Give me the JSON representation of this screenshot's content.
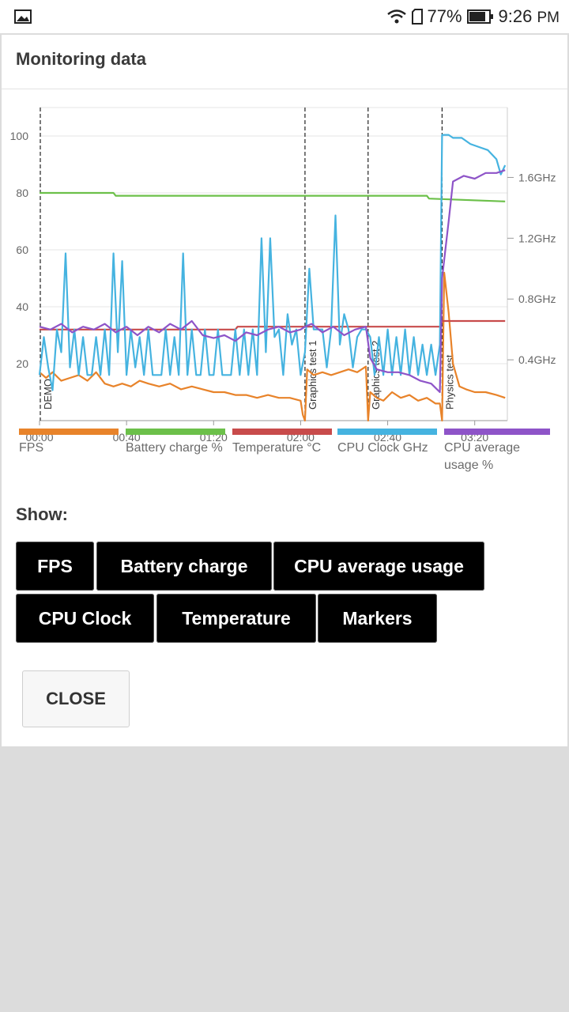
{
  "status_bar": {
    "battery": "77%",
    "time": "9:26",
    "ampm": "PM",
    "icons": [
      "image-icon",
      "wifi-icon",
      "sim-icon",
      "battery-icon"
    ]
  },
  "dialog": {
    "title": "Monitoring data",
    "show_label": "Show:",
    "buttons": {
      "fps": "FPS",
      "battery": "Battery charge",
      "cpu_usage": "CPU average usage",
      "cpu_clock": "CPU Clock",
      "temperature": "Temperature",
      "markers": "Markers"
    },
    "close": "CLOSE"
  },
  "legend": [
    {
      "label": "FPS",
      "color": "#e8832a"
    },
    {
      "label": "Battery charge %",
      "color": "#6cc04a"
    },
    {
      "label": "Temperature °C",
      "color": "#c84b4b"
    },
    {
      "label": "CPU Clock GHz",
      "color": "#45b3e0"
    },
    {
      "label": "CPU average usage %",
      "color": "#8e54c8"
    }
  ],
  "chart_data": {
    "type": "line",
    "x_ticks": [
      "00:00",
      "00:40",
      "01:20",
      "02:00",
      "02:40",
      "03:20"
    ],
    "x_range_seconds": [
      0,
      215
    ],
    "y_left_ticks": [
      20,
      40,
      60,
      80,
      100
    ],
    "y_left_range": [
      0,
      110
    ],
    "y_right_ticks": [
      "0.4GHz",
      "0.8GHz",
      "1.2GHz",
      "1.6GHz"
    ],
    "y_right_range": [
      0,
      2.06
    ],
    "markers": [
      {
        "t": 0,
        "label": "DEMO"
      },
      {
        "t": 122,
        "label": "Graphics test 1"
      },
      {
        "t": 151,
        "label": "Graphics test 2"
      },
      {
        "t": 185,
        "label": "Physics test"
      }
    ],
    "series": [
      {
        "name": "FPS",
        "color": "#e8832a",
        "axis": "left",
        "points": [
          [
            0,
            17
          ],
          [
            3,
            15
          ],
          [
            6,
            17
          ],
          [
            10,
            14
          ],
          [
            14,
            15
          ],
          [
            18,
            16
          ],
          [
            22,
            14
          ],
          [
            26,
            17
          ],
          [
            30,
            13
          ],
          [
            34,
            12
          ],
          [
            38,
            13
          ],
          [
            42,
            12
          ],
          [
            46,
            14
          ],
          [
            50,
            13
          ],
          [
            55,
            12
          ],
          [
            60,
            13
          ],
          [
            65,
            11
          ],
          [
            70,
            12
          ],
          [
            75,
            11
          ],
          [
            80,
            10
          ],
          [
            85,
            10
          ],
          [
            90,
            9
          ],
          [
            95,
            9
          ],
          [
            100,
            8
          ],
          [
            105,
            9
          ],
          [
            110,
            8
          ],
          [
            115,
            8
          ],
          [
            120,
            7
          ],
          [
            121,
            2
          ],
          [
            122,
            0
          ],
          [
            123,
            18
          ],
          [
            126,
            16
          ],
          [
            130,
            17
          ],
          [
            134,
            16
          ],
          [
            138,
            17
          ],
          [
            142,
            18
          ],
          [
            146,
            17
          ],
          [
            150,
            19
          ],
          [
            151,
            0
          ],
          [
            152,
            10
          ],
          [
            155,
            8
          ],
          [
            158,
            7
          ],
          [
            162,
            10
          ],
          [
            166,
            8
          ],
          [
            170,
            9
          ],
          [
            174,
            7
          ],
          [
            178,
            8
          ],
          [
            182,
            6
          ],
          [
            184,
            6
          ],
          [
            185,
            0
          ],
          [
            186,
            52
          ],
          [
            188,
            38
          ],
          [
            190,
            20
          ],
          [
            193,
            12
          ],
          [
            196,
            11
          ],
          [
            200,
            10
          ],
          [
            205,
            10
          ],
          [
            210,
            9
          ],
          [
            214,
            8
          ]
        ]
      },
      {
        "name": "Battery charge %",
        "color": "#6cc04a",
        "axis": "left",
        "points": [
          [
            0,
            80
          ],
          [
            34,
            80
          ],
          [
            35,
            79
          ],
          [
            178,
            79
          ],
          [
            179,
            78
          ],
          [
            214,
            77
          ]
        ]
      },
      {
        "name": "Temperature °C",
        "color": "#c84b4b",
        "axis": "left",
        "points": [
          [
            0,
            32
          ],
          [
            90,
            32
          ],
          [
            91,
            33
          ],
          [
            184,
            33
          ],
          [
            185,
            35
          ],
          [
            214,
            35
          ]
        ]
      },
      {
        "name": "CPU Clock GHz",
        "color": "#45b3e0",
        "axis": "right",
        "points": [
          [
            0,
            0.3
          ],
          [
            2,
            0.55
          ],
          [
            4,
            0.35
          ],
          [
            6,
            0.2
          ],
          [
            8,
            0.6
          ],
          [
            10,
            0.45
          ],
          [
            12,
            1.1
          ],
          [
            14,
            0.35
          ],
          [
            16,
            0.6
          ],
          [
            18,
            0.3
          ],
          [
            20,
            0.55
          ],
          [
            22,
            0.3
          ],
          [
            24,
            0.3
          ],
          [
            26,
            0.55
          ],
          [
            28,
            0.3
          ],
          [
            30,
            0.6
          ],
          [
            32,
            0.3
          ],
          [
            34,
            1.1
          ],
          [
            36,
            0.45
          ],
          [
            38,
            1.05
          ],
          [
            40,
            0.3
          ],
          [
            42,
            0.6
          ],
          [
            44,
            0.35
          ],
          [
            46,
            0.55
          ],
          [
            48,
            0.3
          ],
          [
            50,
            0.6
          ],
          [
            52,
            0.3
          ],
          [
            54,
            0.3
          ],
          [
            56,
            0.3
          ],
          [
            58,
            0.6
          ],
          [
            60,
            0.3
          ],
          [
            62,
            0.55
          ],
          [
            64,
            0.3
          ],
          [
            66,
            1.1
          ],
          [
            68,
            0.3
          ],
          [
            70,
            0.6
          ],
          [
            72,
            0.3
          ],
          [
            74,
            0.3
          ],
          [
            76,
            0.6
          ],
          [
            78,
            0.3
          ],
          [
            80,
            0.3
          ],
          [
            82,
            0.6
          ],
          [
            84,
            0.3
          ],
          [
            86,
            0.3
          ],
          [
            88,
            0.3
          ],
          [
            90,
            0.6
          ],
          [
            92,
            0.3
          ],
          [
            94,
            0.6
          ],
          [
            96,
            0.3
          ],
          [
            98,
            0.6
          ],
          [
            100,
            0.3
          ],
          [
            102,
            1.2
          ],
          [
            104,
            0.45
          ],
          [
            106,
            1.2
          ],
          [
            108,
            0.55
          ],
          [
            110,
            0.6
          ],
          [
            112,
            0.3
          ],
          [
            114,
            0.7
          ],
          [
            116,
            0.5
          ],
          [
            118,
            0.6
          ],
          [
            120,
            0.3
          ],
          [
            122,
            0.45
          ],
          [
            124,
            1.0
          ],
          [
            126,
            0.6
          ],
          [
            128,
            0.6
          ],
          [
            130,
            0.6
          ],
          [
            132,
            0.35
          ],
          [
            134,
            0.6
          ],
          [
            136,
            1.35
          ],
          [
            138,
            0.5
          ],
          [
            140,
            0.7
          ],
          [
            142,
            0.6
          ],
          [
            144,
            0.35
          ],
          [
            146,
            0.55
          ],
          [
            148,
            0.6
          ],
          [
            150,
            0.6
          ],
          [
            152,
            0.55
          ],
          [
            154,
            0.3
          ],
          [
            156,
            0.55
          ],
          [
            158,
            0.3
          ],
          [
            160,
            0.6
          ],
          [
            162,
            0.3
          ],
          [
            164,
            0.55
          ],
          [
            166,
            0.3
          ],
          [
            168,
            0.6
          ],
          [
            170,
            0.3
          ],
          [
            172,
            0.55
          ],
          [
            174,
            0.3
          ],
          [
            176,
            0.5
          ],
          [
            178,
            0.3
          ],
          [
            180,
            0.5
          ],
          [
            182,
            0.3
          ],
          [
            184,
            0.5
          ],
          [
            185,
            1.88
          ],
          [
            188,
            1.88
          ],
          [
            190,
            1.86
          ],
          [
            194,
            1.86
          ],
          [
            198,
            1.82
          ],
          [
            202,
            1.8
          ],
          [
            206,
            1.78
          ],
          [
            210,
            1.72
          ],
          [
            212,
            1.62
          ],
          [
            214,
            1.68
          ]
        ]
      },
      {
        "name": "CPU average usage %",
        "color": "#8e54c8",
        "axis": "left",
        "points": [
          [
            0,
            33
          ],
          [
            5,
            32
          ],
          [
            10,
            34
          ],
          [
            15,
            31
          ],
          [
            20,
            33
          ],
          [
            25,
            32
          ],
          [
            30,
            34
          ],
          [
            35,
            31
          ],
          [
            40,
            33
          ],
          [
            45,
            30
          ],
          [
            50,
            33
          ],
          [
            55,
            31
          ],
          [
            60,
            34
          ],
          [
            65,
            32
          ],
          [
            70,
            35
          ],
          [
            75,
            30
          ],
          [
            80,
            29
          ],
          [
            85,
            30
          ],
          [
            90,
            28
          ],
          [
            95,
            31
          ],
          [
            100,
            30
          ],
          [
            105,
            32
          ],
          [
            110,
            33
          ],
          [
            115,
            31
          ],
          [
            120,
            32
          ],
          [
            122,
            33
          ],
          [
            125,
            34
          ],
          [
            130,
            31
          ],
          [
            135,
            33
          ],
          [
            140,
            30
          ],
          [
            145,
            32
          ],
          [
            150,
            33
          ],
          [
            152,
            22
          ],
          [
            155,
            18
          ],
          [
            160,
            17
          ],
          [
            165,
            17
          ],
          [
            170,
            16
          ],
          [
            175,
            14
          ],
          [
            180,
            13
          ],
          [
            184,
            10
          ],
          [
            185,
            50
          ],
          [
            188,
            70
          ],
          [
            190,
            84
          ],
          [
            195,
            86
          ],
          [
            200,
            85
          ],
          [
            205,
            87
          ],
          [
            210,
            87
          ],
          [
            214,
            88
          ]
        ]
      }
    ]
  }
}
